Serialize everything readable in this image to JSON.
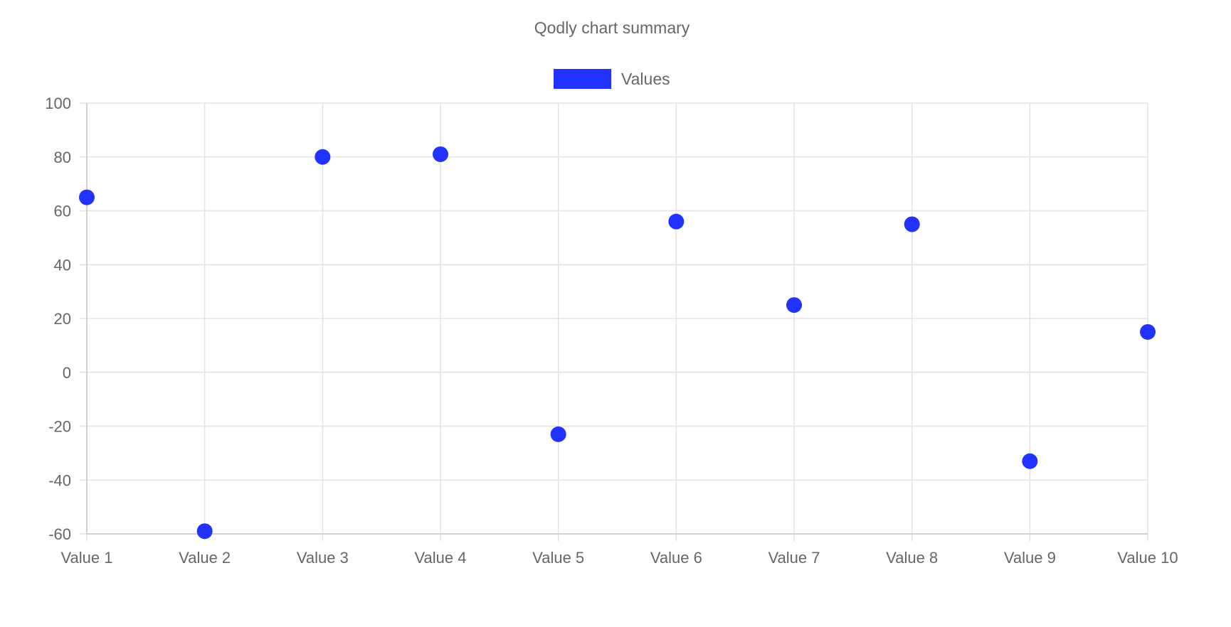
{
  "chart_data": {
    "type": "scatter",
    "title": "Qodly chart summary",
    "categories": [
      "Value 1",
      "Value 2",
      "Value 3",
      "Value 4",
      "Value 5",
      "Value 6",
      "Value 7",
      "Value 8",
      "Value 9",
      "Value 10"
    ],
    "series": [
      {
        "name": "Values",
        "color": "#2233ff",
        "values": [
          65,
          -59,
          80,
          81,
          -23,
          56,
          25,
          55,
          -33,
          15
        ]
      }
    ],
    "ylim": [
      -60,
      100
    ],
    "yticks": [
      "100",
      "80",
      "60",
      "40",
      "20",
      "0",
      "-20",
      "-40",
      "-60"
    ],
    "grid": true,
    "legend_position": "top-center",
    "xlabel": "",
    "ylabel": ""
  }
}
